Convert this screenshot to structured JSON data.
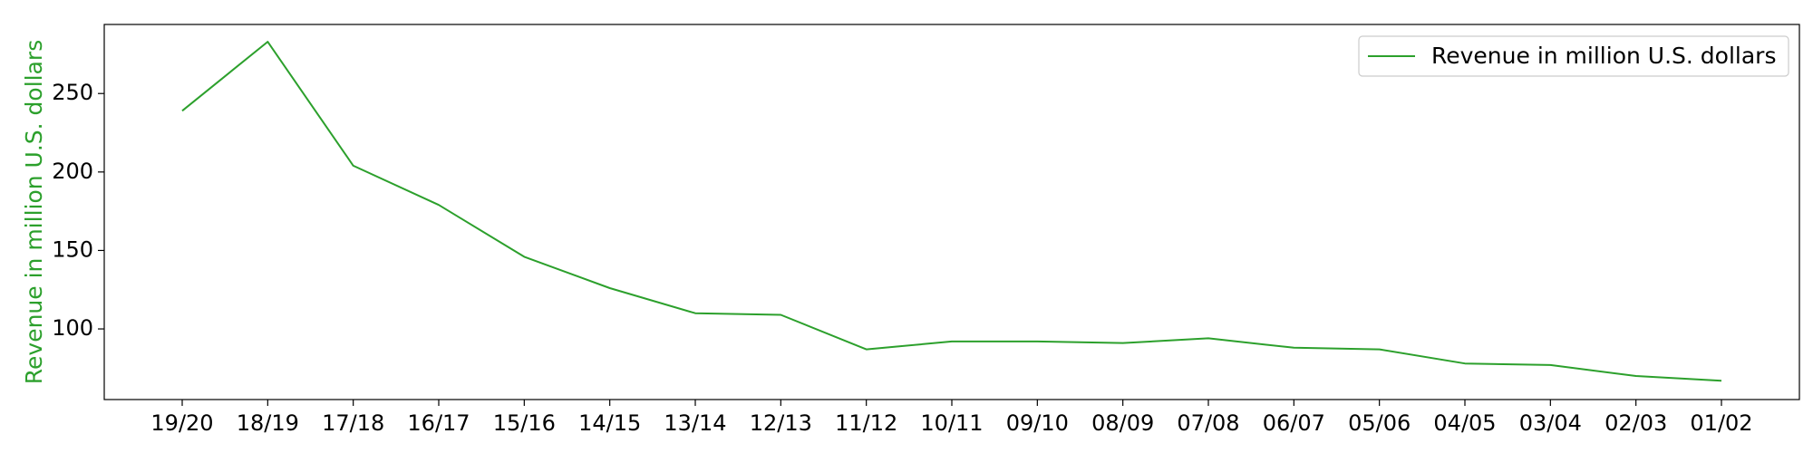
{
  "chart_data": {
    "type": "line",
    "title": "",
    "xlabel": "",
    "ylabel": "Revenue in million U.S. dollars",
    "categories": [
      "19/20",
      "18/19",
      "17/18",
      "16/17",
      "15/16",
      "14/15",
      "13/14",
      "12/13",
      "11/12",
      "10/11",
      "09/10",
      "08/09",
      "07/08",
      "06/07",
      "05/06",
      "04/05",
      "03/04",
      "02/03",
      "01/02"
    ],
    "series": [
      {
        "name": "Revenue in million U.S. dollars",
        "color": "#2ca02c",
        "values": [
          239,
          283,
          204,
          179,
          146,
          126,
          110,
          109,
          87,
          92,
          92,
          91,
          94,
          88,
          87,
          78,
          77,
          70,
          67
        ]
      }
    ],
    "yticks": [
      100,
      150,
      200,
      250
    ],
    "ylim": [
      55,
      294
    ],
    "grid": false,
    "legend_position": "top-right",
    "ylabel_color": "#2ca02c"
  }
}
